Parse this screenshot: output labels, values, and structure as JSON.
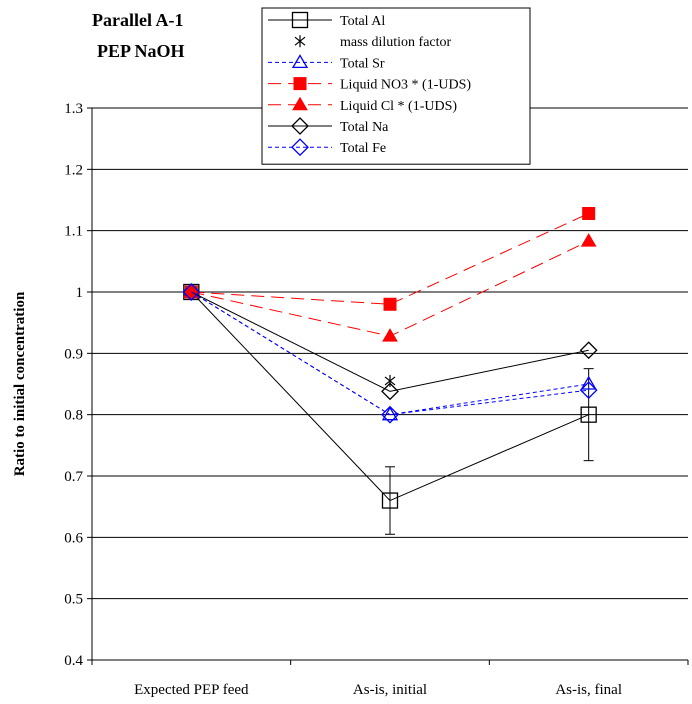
{
  "chart_data": {
    "type": "line",
    "title_lines": [
      "Parallel A-1",
      "PEP NaOH"
    ],
    "xlabel": "",
    "ylabel": "Ratio to initial concentration",
    "categories": [
      "Expected PEP feed",
      "As-is, initial",
      "As-is, final"
    ],
    "ylim": [
      0.4,
      1.3
    ],
    "yticks": [
      "0.4",
      "0.5",
      "0.6",
      "0.7",
      "0.8",
      "0.9",
      "1",
      "1.1",
      "1.2",
      "1.3"
    ],
    "grid": "horizontal",
    "legend_position": "top-center",
    "series": [
      {
        "name": "Total Al",
        "values": [
          1.0,
          0.66,
          0.8
        ],
        "error": [
          0,
          0.055,
          0.075
        ],
        "color": "#000000",
        "dash": "solid",
        "marker": "square-open"
      },
      {
        "name": "mass dilution factor",
        "values": [
          1.0,
          0.855,
          null
        ],
        "color": "#000000",
        "dash": "none",
        "marker": "asterisk"
      },
      {
        "name": "Total Sr",
        "values": [
          1.0,
          0.8,
          0.85
        ],
        "color": "#0000ff",
        "dash": "dotted",
        "marker": "triangle-open"
      },
      {
        "name": "Liquid NO3 * (1-UDS)",
        "values": [
          1.0,
          0.98,
          1.128
        ],
        "color": "#ff0000",
        "dash": "dashed",
        "marker": "square-filled"
      },
      {
        "name": "Liquid Cl * (1-UDS)",
        "values": [
          1.0,
          0.928,
          1.083
        ],
        "color": "#ff0000",
        "dash": "dashed",
        "marker": "triangle-filled"
      },
      {
        "name": "Total Na",
        "values": [
          1.0,
          0.838,
          0.905
        ],
        "color": "#000000",
        "dash": "solid",
        "marker": "diamond-open"
      },
      {
        "name": "Total Fe",
        "values": [
          1.0,
          0.8,
          0.84
        ],
        "color": "#0000ff",
        "dash": "dotted",
        "marker": "diamond-open"
      }
    ]
  }
}
